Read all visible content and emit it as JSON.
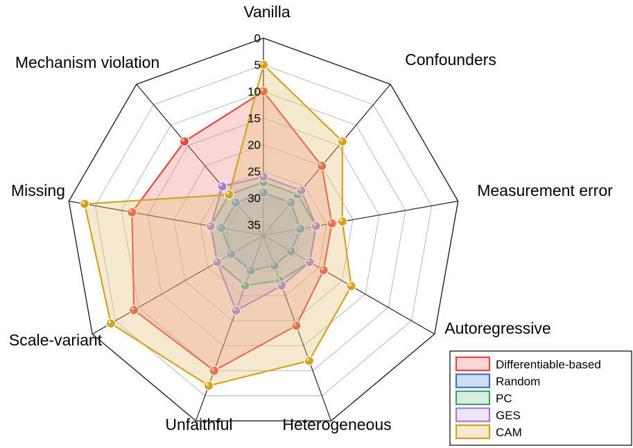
{
  "chart_data": {
    "type": "radar",
    "scale": "reversed",
    "rlim": [
      0,
      37
    ],
    "ticks": [
      "0",
      "5",
      "10",
      "15",
      "20",
      "25",
      "30",
      "35"
    ],
    "tick_values": [
      0,
      5,
      10,
      15,
      20,
      25,
      30,
      35
    ],
    "axes": [
      "Vanilla",
      "Confounders",
      "Measurement error",
      "Autoregressive",
      "Heterogeneous",
      "Unfaithful",
      "Scale-variant",
      "Missing",
      "Mechanism violation"
    ],
    "grid": true,
    "legend_position": "bottom-right",
    "series": [
      {
        "name": "Differentiable-based",
        "color": "#e8453c",
        "fill": "rgba(240,120,120,0.30)",
        "values": [
          10,
          20,
          24,
          24,
          19,
          10,
          9,
          12,
          14
        ]
      },
      {
        "name": "Random",
        "color": "#3d75b9",
        "fill": "rgba(120,160,220,0.35)",
        "values": [
          29,
          29,
          30,
          31,
          31,
          30,
          30,
          29,
          29
        ]
      },
      {
        "name": "PC",
        "color": "#3ca46c",
        "fill": "rgba(120,200,150,0.30)",
        "values": [
          27,
          27,
          27,
          27,
          28,
          27,
          27,
          27,
          27
        ]
      },
      {
        "name": "GES",
        "color": "#a678d1",
        "fill": "rgba(200,170,230,0.30)",
        "values": [
          26,
          26,
          27,
          27,
          27,
          22,
          27,
          27,
          25
        ]
      },
      {
        "name": "CAM",
        "color": "#d4a21e",
        "fill": "rgba(225,195,120,0.35)",
        "values": [
          5,
          14,
          22,
          18,
          12,
          7,
          4,
          3,
          27
        ]
      }
    ]
  }
}
